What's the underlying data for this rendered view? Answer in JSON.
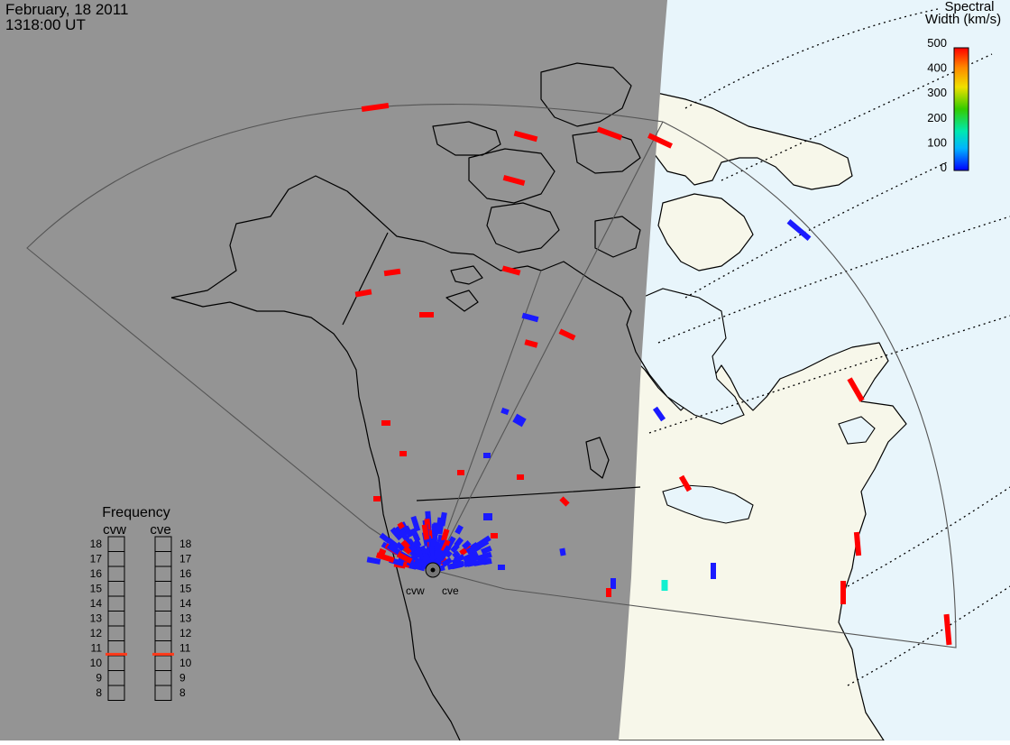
{
  "header": {
    "date": "February, 18 2011",
    "time": "1318:00 UT"
  },
  "colors": {
    "night": "#949494",
    "day": "#f7f7ea",
    "ocean_day": "#e8f5fb",
    "land_outline": "#000000",
    "fov_outline": "#555555",
    "grid": "#000000"
  },
  "spectral_legend": {
    "title_line1": "Spectral",
    "title_line2": "Width (km/s)",
    "ticks": [
      "500",
      "400",
      "300",
      "200",
      "100",
      "0"
    ],
    "range": [
      0,
      500
    ]
  },
  "frequency_panel": {
    "title": "Frequency",
    "radars": [
      {
        "id": "cvw",
        "label": "cvw",
        "frequency_mhz": 10.6,
        "marker_color": "#ff3a1a"
      },
      {
        "id": "cve",
        "label": "cve",
        "frequency_mhz": 10.6,
        "marker_color": "#ff3a1a"
      }
    ],
    "scale_labels": [
      "18",
      "17",
      "16",
      "15",
      "14",
      "13",
      "12",
      "11",
      "10",
      "9",
      "8"
    ],
    "range_mhz": [
      8,
      18
    ]
  },
  "radar_sites": {
    "cvw": {
      "label": "cvw"
    },
    "cve": {
      "label": "cve"
    }
  },
  "scatter": {
    "colors": {
      "high": "#ff0000",
      "low": "#1a1aff",
      "mid": "#10f0d0"
    }
  }
}
